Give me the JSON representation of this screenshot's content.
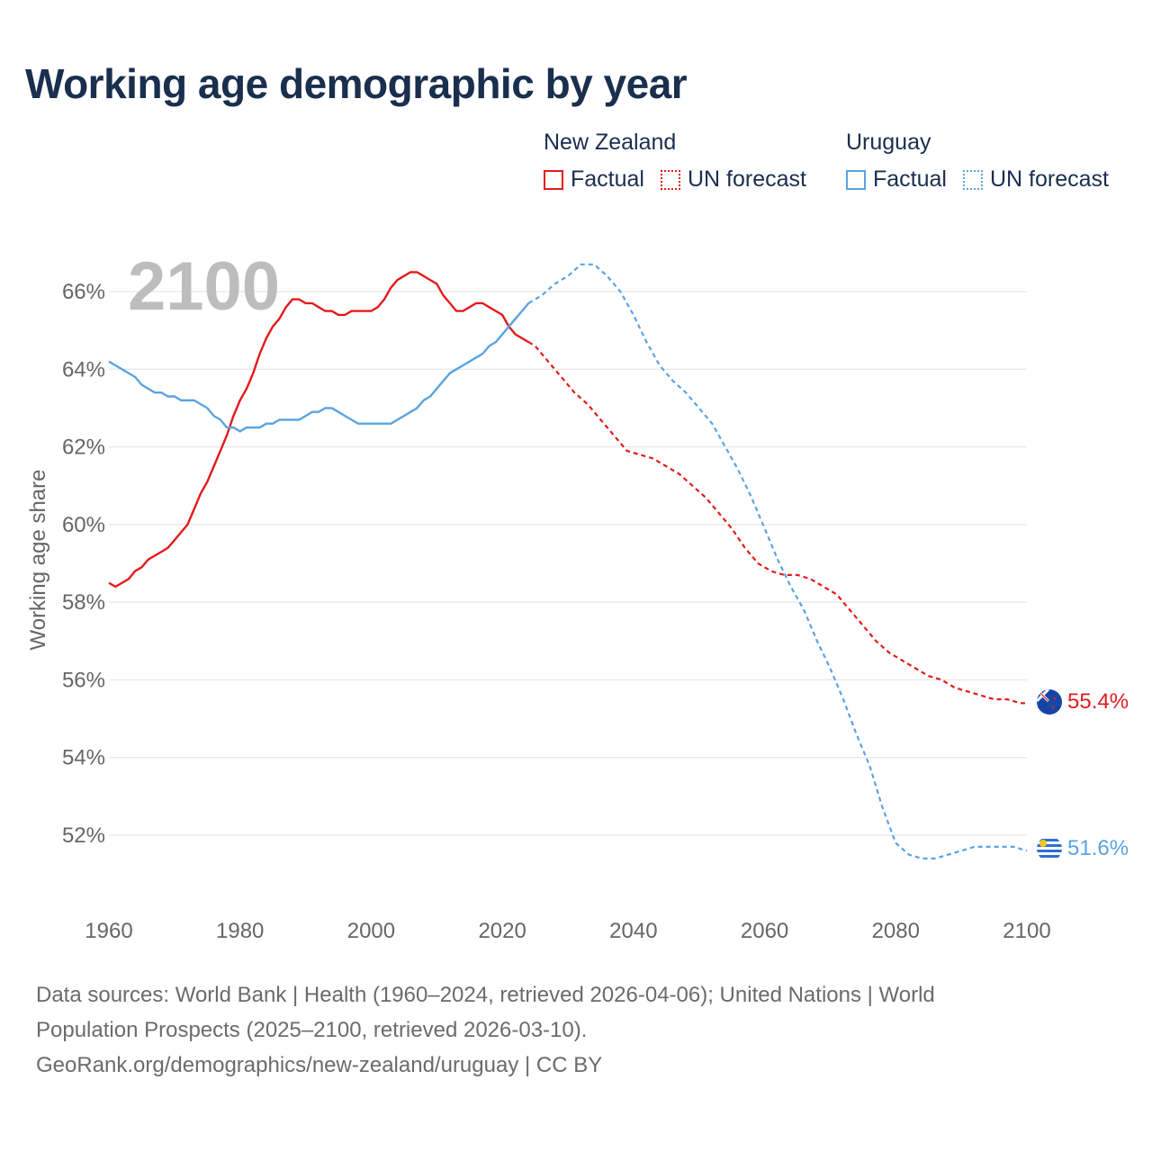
{
  "chart_data": {
    "type": "line",
    "title": "Working age demographic by year",
    "ylabel": "Working age share",
    "xlabel": "",
    "year_label": "2100",
    "xlim": [
      1960,
      2100
    ],
    "ylim": [
      50,
      67.5
    ],
    "x_ticks": [
      1960,
      1980,
      2000,
      2020,
      2040,
      2060,
      2080,
      2100
    ],
    "x_tick_labels": [
      "1960",
      "1980",
      "2000",
      "2020",
      "2040",
      "2060",
      "2080",
      "2100"
    ],
    "y_ticks": [
      52,
      54,
      56,
      58,
      60,
      62,
      64,
      66
    ],
    "y_tick_labels": [
      "52%",
      "54%",
      "56%",
      "58%",
      "60%",
      "62%",
      "64%",
      "66%"
    ],
    "legend": {
      "groups": [
        {
          "name": "New Zealand",
          "items": [
            {
              "label": "Factual",
              "style": "solid",
              "color": "#e31a1c"
            },
            {
              "label": "UN forecast",
              "style": "dotted",
              "color": "#e31a1c"
            }
          ]
        },
        {
          "name": "Uruguay",
          "items": [
            {
              "label": "Factual",
              "style": "solid",
              "color": "#5ba3e0"
            },
            {
              "label": "UN forecast",
              "style": "dotted",
              "color": "#5ba3e0"
            }
          ]
        }
      ]
    },
    "series": [
      {
        "name": "New Zealand",
        "color": "#e31a1c",
        "end_label": "55.4%",
        "factual": {
          "x": [
            1960,
            1961,
            1962,
            1963,
            1964,
            1965,
            1966,
            1967,
            1968,
            1969,
            1970,
            1971,
            1972,
            1973,
            1974,
            1975,
            1976,
            1977,
            1978,
            1979,
            1980,
            1981,
            1982,
            1983,
            1984,
            1985,
            1986,
            1987,
            1988,
            1989,
            1990,
            1991,
            1992,
            1993,
            1994,
            1995,
            1996,
            1997,
            1998,
            1999,
            2000,
            2001,
            2002,
            2003,
            2004,
            2005,
            2006,
            2007,
            2008,
            2009,
            2010,
            2011,
            2012,
            2013,
            2014,
            2015,
            2016,
            2017,
            2018,
            2019,
            2020,
            2021,
            2022,
            2023,
            2024
          ],
          "y": [
            58.5,
            58.4,
            58.5,
            58.6,
            58.8,
            58.9,
            59.1,
            59.2,
            59.3,
            59.4,
            59.6,
            59.8,
            60.0,
            60.4,
            60.8,
            61.1,
            61.5,
            61.9,
            62.3,
            62.8,
            63.2,
            63.5,
            63.9,
            64.4,
            64.8,
            65.1,
            65.3,
            65.6,
            65.8,
            65.8,
            65.7,
            65.7,
            65.6,
            65.5,
            65.5,
            65.4,
            65.4,
            65.5,
            65.5,
            65.5,
            65.5,
            65.6,
            65.8,
            66.1,
            66.3,
            66.4,
            66.5,
            66.5,
            66.4,
            66.3,
            66.2,
            65.9,
            65.7,
            65.5,
            65.5,
            65.6,
            65.7,
            65.7,
            65.6,
            65.5,
            65.4,
            65.1,
            64.9,
            64.8,
            64.7
          ]
        },
        "forecast": {
          "x": [
            2024,
            2025,
            2027,
            2029,
            2031,
            2033,
            2035,
            2037,
            2039,
            2041,
            2043,
            2045,
            2047,
            2049,
            2051,
            2053,
            2055,
            2057,
            2059,
            2061,
            2063,
            2065,
            2067,
            2069,
            2071,
            2073,
            2075,
            2077,
            2079,
            2081,
            2083,
            2085,
            2087,
            2089,
            2091,
            2093,
            2095,
            2097,
            2099,
            2100
          ],
          "y": [
            64.7,
            64.6,
            64.2,
            63.8,
            63.4,
            63.1,
            62.7,
            62.3,
            61.9,
            61.8,
            61.7,
            61.5,
            61.3,
            61.0,
            60.7,
            60.3,
            59.9,
            59.4,
            59.0,
            58.8,
            58.7,
            58.7,
            58.6,
            58.4,
            58.2,
            57.8,
            57.4,
            57.0,
            56.7,
            56.5,
            56.3,
            56.1,
            56.0,
            55.8,
            55.7,
            55.6,
            55.5,
            55.5,
            55.4,
            55.4
          ]
        }
      },
      {
        "name": "Uruguay",
        "color": "#5ba3e0",
        "end_label": "51.6%",
        "factual": {
          "x": [
            1960,
            1961,
            1962,
            1963,
            1964,
            1965,
            1966,
            1967,
            1968,
            1969,
            1970,
            1971,
            1972,
            1973,
            1974,
            1975,
            1976,
            1977,
            1978,
            1979,
            1980,
            1981,
            1982,
            1983,
            1984,
            1985,
            1986,
            1987,
            1988,
            1989,
            1990,
            1991,
            1992,
            1993,
            1994,
            1995,
            1996,
            1997,
            1998,
            1999,
            2000,
            2001,
            2002,
            2003,
            2004,
            2005,
            2006,
            2007,
            2008,
            2009,
            2010,
            2011,
            2012,
            2013,
            2014,
            2015,
            2016,
            2017,
            2018,
            2019,
            2020,
            2021,
            2022,
            2023,
            2024
          ],
          "y": [
            64.2,
            64.1,
            64.0,
            63.9,
            63.8,
            63.6,
            63.5,
            63.4,
            63.4,
            63.3,
            63.3,
            63.2,
            63.2,
            63.2,
            63.1,
            63.0,
            62.8,
            62.7,
            62.5,
            62.5,
            62.4,
            62.5,
            62.5,
            62.5,
            62.6,
            62.6,
            62.7,
            62.7,
            62.7,
            62.7,
            62.8,
            62.9,
            62.9,
            63.0,
            63.0,
            62.9,
            62.8,
            62.7,
            62.6,
            62.6,
            62.6,
            62.6,
            62.6,
            62.6,
            62.7,
            62.8,
            62.9,
            63.0,
            63.2,
            63.3,
            63.5,
            63.7,
            63.9,
            64.0,
            64.1,
            64.2,
            64.3,
            64.4,
            64.6,
            64.7,
            64.9,
            65.1,
            65.3,
            65.5,
            65.7
          ]
        },
        "forecast": {
          "x": [
            2024,
            2026,
            2028,
            2030,
            2032,
            2034,
            2036,
            2038,
            2040,
            2042,
            2044,
            2046,
            2048,
            2050,
            2052,
            2054,
            2056,
            2058,
            2060,
            2062,
            2064,
            2066,
            2068,
            2070,
            2072,
            2074,
            2076,
            2078,
            2080,
            2082,
            2084,
            2086,
            2088,
            2090,
            2092,
            2094,
            2096,
            2098,
            2100
          ],
          "y": [
            65.7,
            65.9,
            66.2,
            66.4,
            66.7,
            66.7,
            66.4,
            66.0,
            65.4,
            64.7,
            64.1,
            63.7,
            63.4,
            63.0,
            62.6,
            62.0,
            61.4,
            60.7,
            59.9,
            59.1,
            58.4,
            57.8,
            57.0,
            56.3,
            55.5,
            54.6,
            53.8,
            52.7,
            51.8,
            51.5,
            51.4,
            51.4,
            51.5,
            51.6,
            51.7,
            51.7,
            51.7,
            51.7,
            51.6
          ]
        }
      }
    ]
  },
  "footer": {
    "line1": "Data sources: World Bank | Health (1960–2024, retrieved 2026-04-06); United Nations | World",
    "line2": "Population Prospects (2025–2100, retrieved 2026-03-10).",
    "line3": "GeoRank.org/demographics/new-zealand/uruguay | CC BY"
  }
}
